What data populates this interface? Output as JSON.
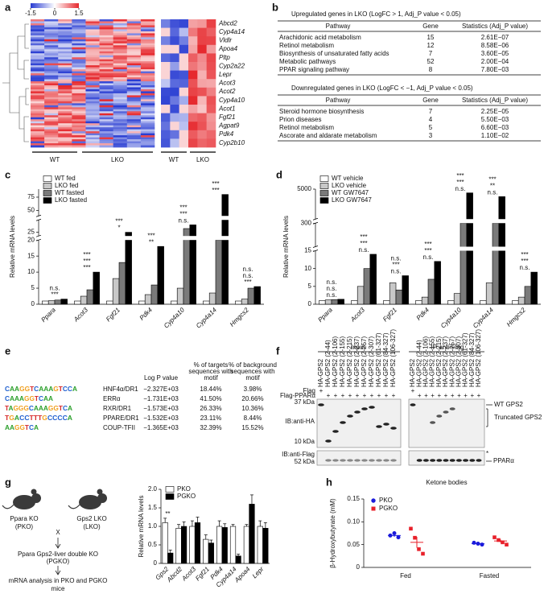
{
  "panel_labels": [
    "a",
    "b",
    "c",
    "d",
    "e",
    "f",
    "g",
    "h"
  ],
  "heatmap": {
    "colorbar_lim": [
      -1.5,
      1.5
    ],
    "colorbar_ticks": [
      -1.5,
      0,
      1.5
    ],
    "genes": [
      "Abcd2",
      "Cyp4a14",
      "Vldlr",
      "Apoa4",
      "Pltp",
      "Cyp2a22",
      "Lepr",
      "Acot3",
      "Acot2",
      "Cyp4a10",
      "Acot1",
      "Fgf21",
      "Agpat9",
      "Pdk4",
      "Cyp2b10"
    ],
    "groups": [
      "WT",
      "LKO",
      "WT",
      "LKO"
    ]
  },
  "pathway_tables": [
    {
      "title": "Upregulated genes in LKO (LogFC > 1, Adj_P value < 0.05)",
      "header": [
        "Pathway",
        "Gene",
        "Statistics (Adj_P value)"
      ],
      "rows": [
        [
          "Arachidonic acid metabolism",
          15,
          "2.61E−07"
        ],
        [
          "Retinol metabolism",
          12,
          "8.58E−06"
        ],
        [
          "Biosynthesis of unsaturated fatty acids",
          7,
          "3.60E−05"
        ],
        [
          "Metabolic pathways",
          52,
          "2.00E−04"
        ],
        [
          "PPAR signaling pathway",
          8,
          "7.80E−03"
        ]
      ]
    },
    {
      "title": "Downregulated genes in LKO (LogFC < −1, Adj_P value < 0.05)",
      "header": [
        "Pathway",
        "Gene",
        "Statistics (Adj_P value)"
      ],
      "rows": [
        [
          "Steroid hormone biosynthesis",
          7,
          "2.25E−05"
        ],
        [
          "Prion diseases",
          4,
          "5.50E−03"
        ],
        [
          "Retinol metabolism",
          5,
          "6.60E−03"
        ],
        [
          "Ascorate and aldarate metabolism",
          3,
          "1.10E−02"
        ]
      ]
    }
  ],
  "chart_data": [
    {
      "type": "bar",
      "y_label": "Relative mRNA levels",
      "legend": "upper left",
      "categories": [
        "Ppara",
        "Acot3",
        "Fgf21",
        "Pdk4",
        "Cyp4a10",
        "Cyp4a14",
        "Hmgcs2"
      ],
      "series": [
        {
          "name": "WT fed",
          "color": "#ffffff",
          "values": [
            1,
            1,
            1,
            1,
            1,
            1,
            1
          ]
        },
        {
          "name": "LKO fed",
          "color": "#c8c8c8",
          "values": [
            1.1,
            2.5,
            8,
            3,
            5,
            3.5,
            1.6
          ]
        },
        {
          "name": "WT fasted",
          "color": "#7a7a7a",
          "values": [
            1.3,
            4.5,
            13,
            6,
            28,
            20,
            5
          ]
        },
        {
          "name": "LKO fasted",
          "color": "#000000",
          "values": [
            1.6,
            10,
            25,
            18,
            31,
            80,
            5.5
          ]
        }
      ],
      "ylim": [
        0,
        90
      ],
      "y_segments": [
        [
          0,
          20
        ],
        [
          22,
          35
        ],
        [
          40,
          90
        ]
      ],
      "yticks": [
        0,
        5,
        10,
        15,
        20,
        25,
        50,
        75
      ],
      "significance": [
        [
          "***",
          "n.s."
        ],
        [
          "***",
          "***",
          "***"
        ],
        [
          "*",
          "***"
        ],
        [
          "**",
          "***"
        ],
        [
          "n.s.",
          "***",
          "***"
        ],
        [
          "***",
          "***"
        ],
        [
          "***",
          "n.s.",
          "n.s."
        ]
      ]
    },
    {
      "type": "bar",
      "y_label": "Relative mRNA levels",
      "legend": "upper left",
      "categories": [
        "Ppara",
        "Acot3",
        "Fgf21",
        "Pdk4",
        "Cyp4a10",
        "Cyp4a14",
        "Hmgcs2"
      ],
      "series": [
        {
          "name": "WT vehicle",
          "color": "#ffffff",
          "values": [
            1,
            1,
            1,
            1,
            1,
            1,
            1
          ]
        },
        {
          "name": "LKO vehicle",
          "color": "#c8c8c8",
          "values": [
            1.2,
            5,
            6,
            2,
            3,
            6,
            2
          ]
        },
        {
          "name": "WT GW7647",
          "color": "#7a7a7a",
          "values": [
            1.3,
            10,
            4,
            7,
            300,
            300,
            5
          ]
        },
        {
          "name": "LKO GW7647",
          "color": "#000000",
          "values": [
            1.4,
            14,
            8,
            12,
            4500,
            4000,
            9
          ]
        }
      ],
      "ylim": [
        0,
        5000
      ],
      "y_segments": [
        [
          0,
          15
        ],
        [
          100,
          300
        ],
        [
          1000,
          5000
        ]
      ],
      "yticks": [
        0,
        5,
        10,
        15,
        300,
        5000
      ],
      "significance": [
        [
          "n.s.",
          "n.s.",
          "n.s."
        ],
        [
          "n.s.",
          "***",
          "***"
        ],
        [
          "n.s.",
          "***",
          "n.s."
        ],
        [
          "n.s.",
          "***",
          "***"
        ],
        [
          "n.s.",
          "***",
          "***"
        ],
        [
          "n.s.",
          "**",
          "***"
        ],
        [
          "n.s.",
          "***",
          "***"
        ]
      ]
    },
    {
      "type": "bar",
      "y_label": "Relative mRNA levels",
      "legend": "upper left",
      "categories": [
        "Gps2",
        "Abcd2",
        "Acot3",
        "Fgf21",
        "Pdk4",
        "Cyp4a14",
        "Apoa4",
        "Lepr"
      ],
      "series": [
        {
          "name": "PKO",
          "color": "#ffffff",
          "values": [
            1.1,
            0.95,
            1,
            0.65,
            1,
            1,
            1,
            1
          ],
          "errors": [
            0.12,
            0.1,
            0.15,
            0.12,
            0.15,
            0.05,
            0.05,
            0.15
          ]
        },
        {
          "name": "PGKO",
          "color": "#000000",
          "values": [
            0.28,
            1,
            1.1,
            0.55,
            0.97,
            0.2,
            1.6,
            0.95
          ],
          "errors": [
            0.08,
            0.12,
            0.15,
            0.08,
            0.1,
            0.05,
            0.25,
            0.15
          ]
        }
      ],
      "ylim": [
        0,
        2
      ],
      "yticks": [
        0,
        0.5,
        {
          "value": 1,
          "label": "1.0"
        },
        1.5,
        {
          "value": 2,
          "label": "2.0"
        }
      ],
      "significance": [
        [
          "**"
        ],
        [],
        [],
        [],
        [],
        [],
        [],
        []
      ]
    },
    {
      "type": "scatter",
      "title": "Ketone bodies",
      "y_label": "β-Hydroxybutyrate (mM)",
      "legend": "upper left",
      "categories": [
        "Fed",
        "Fasted"
      ],
      "series": [
        {
          "name": "PKO",
          "color": "#1a1adb",
          "marker": "circle",
          "values": [
            [
              0.07,
              0.075,
              0.066
            ],
            [
              0.054,
              0.052,
              0.05
            ]
          ],
          "means": [
            0.07,
            0.052
          ],
          "sems": [
            0.003,
            0.001
          ]
        },
        {
          "name": "PGKO",
          "color": "#e8202a",
          "marker": "square",
          "values": [
            [
              0.085,
              0.065,
              0.04,
              0.03
            ],
            [
              0.066,
              0.06,
              0.055,
              0.05
            ]
          ],
          "means": [
            0.055,
            0.058
          ],
          "sems": [
            0.012,
            0.003
          ]
        }
      ],
      "ylim": [
        0,
        0.15
      ],
      "yticks": [
        0,
        0.05,
        {
          "value": 0.1,
          "label": "0.10"
        },
        {
          "value": 0.15,
          "label": "0.15"
        }
      ]
    }
  ],
  "motif_table": {
    "header": [
      [
        "Log P value"
      ],
      [
        "% of targets",
        "sequences with",
        "motif"
      ],
      [
        "% of background",
        "sequences with",
        "motif"
      ]
    ],
    "rows": [
      {
        "motif": "CAAGGTCAAAGTCCA",
        "name": "HNF4α/DR1",
        "log_p": "−2.327E+03",
        "targets": "18.44%",
        "background": "3.98%"
      },
      {
        "motif": "CAAAGGTCAA",
        "name": "ERRα",
        "log_p": "−1.731E+03",
        "targets": "41.50%",
        "background": "20.66%"
      },
      {
        "motif": "TAGGGCAAAGGTCA",
        "name": "RXR/DR1",
        "log_p": "−1.573E+03",
        "targets": "26.33%",
        "background": "10.36%"
      },
      {
        "motif": "TGACCTTTGCCCCA",
        "name": "PPARE/DR1",
        "log_p": "−1.532E+03",
        "targets": "23.11%",
        "background": "8.44%"
      },
      {
        "motif": "AAGGTCA",
        "name": "COUP-TFII",
        "log_p": "−1.365E+03",
        "targets": "32.39%",
        "background": "15.52%"
      }
    ]
  },
  "western_blot": {
    "input_title": "Input",
    "ip_title": "IP:anti-Flag",
    "lanes": [
      "HA-GPS2",
      "HA-GPS2 (2-44)",
      "HA-GPS2 (2-106)",
      "HA-GPS2 (2-155)",
      "HA-GPS2 (2-215)",
      "HA-GPS2 (2-237)",
      "HA-GPS2 (2-257)",
      "HA-GPS2 (2-307)",
      "HA-GPS2 (61-327)",
      "HA-GPS2 (84-327)",
      "HA-GPS2 (106-327)"
    ],
    "row_labels": [
      "Flag",
      "Flag-PPARα"
    ],
    "flag": [
      "+",
      null,
      null,
      null,
      null,
      null,
      null,
      null,
      null,
      null,
      null
    ],
    "flag_ppara": [
      null,
      "+",
      "+",
      "+",
      "+",
      "+",
      "+",
      "+",
      "+",
      "+",
      "+"
    ],
    "markers": [
      "37 kDa",
      "10 kDa",
      "52 kDa"
    ],
    "blots": [
      "IB:anti-HA",
      "IB:anti-Flag"
    ],
    "annotations": [
      "WT GPS2",
      "Truncated GPS2",
      "*",
      "PPARα"
    ]
  },
  "diagram": {
    "mouse_left": [
      "Ppara KO",
      "(PKO)"
    ],
    "mouse_right": [
      "Gps2 LKO",
      "(LKO)"
    ],
    "cross": "X",
    "double_ko": [
      "Ppara Gps2-liver double KO",
      "(PGKO)"
    ],
    "analysis": [
      "mRNA analysis in PKO and PGKO",
      "mice"
    ]
  }
}
